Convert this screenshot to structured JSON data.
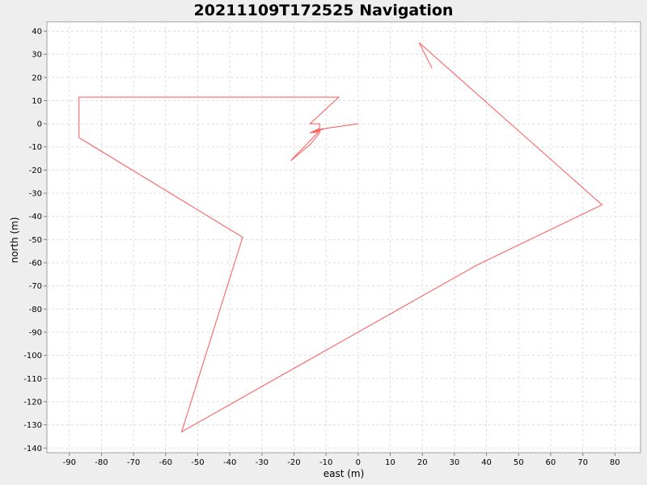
{
  "chart_data": {
    "type": "line",
    "title": "20211109T172525 Navigation",
    "xlabel": "east (m)",
    "ylabel": "north (m)",
    "xlim": [
      -97,
      88
    ],
    "ylim": [
      -142,
      44
    ],
    "xticks": [
      -90,
      -80,
      -70,
      -60,
      -50,
      -40,
      -30,
      -20,
      -10,
      0,
      10,
      20,
      30,
      40,
      50,
      60,
      70,
      80
    ],
    "yticks": [
      40,
      30,
      20,
      10,
      0,
      -10,
      -20,
      -30,
      -40,
      -50,
      -60,
      -70,
      -80,
      -90,
      -100,
      -110,
      -120,
      -130,
      -140
    ],
    "grid": true,
    "series_color": "#ff5555",
    "series": [
      {
        "x": [
          0,
          -10,
          -15,
          -12,
          -14,
          -11,
          -13,
          -12,
          -21,
          -15,
          -12,
          -12,
          -15,
          -6,
          -87,
          -87,
          -36,
          -55,
          37,
          76,
          19,
          23
        ],
        "y": [
          0,
          -2,
          -4,
          -2,
          -4,
          -2,
          -4,
          -3,
          -16,
          -9,
          -4,
          0,
          0,
          11.5,
          11.5,
          -6,
          -49,
          -133,
          -61,
          -35,
          35,
          24
        ]
      }
    ]
  }
}
